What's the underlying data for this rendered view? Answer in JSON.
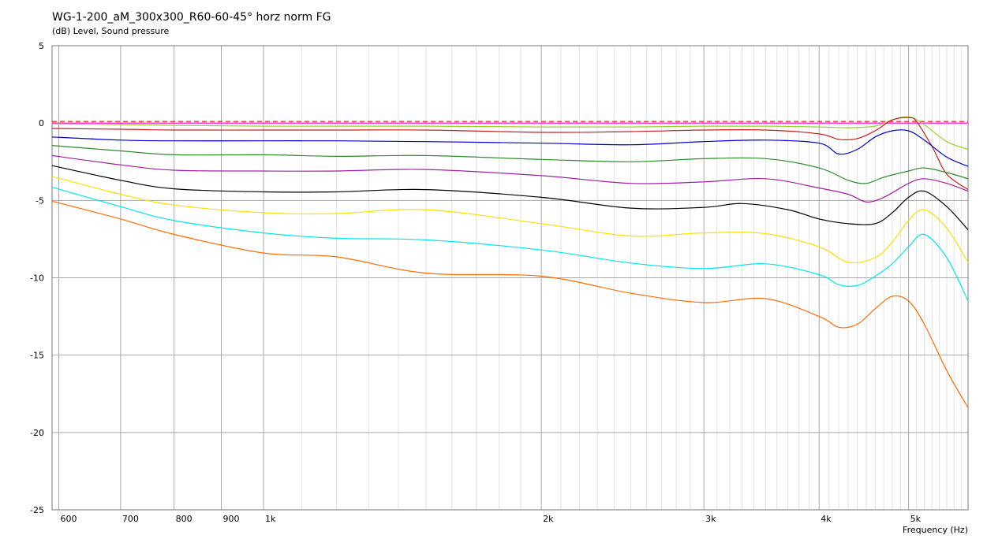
{
  "chart_data": {
    "type": "line",
    "title": "WG-1-200_aM_300x300_R60-60-45° horz norm FG",
    "ylabel": "(dB)  Level, Sound pressure",
    "xlabel": "Frequency  (Hz)",
    "x_scale": "log",
    "xlim": [
      590,
      5800
    ],
    "ylim": [
      -25,
      5
    ],
    "grid": true,
    "y_ticks": [
      5,
      0,
      -5,
      -10,
      -15,
      -20,
      -25
    ],
    "x_ticks": [
      {
        "value": 600,
        "label": "600"
      },
      {
        "value": 700,
        "label": "700"
      },
      {
        "value": 800,
        "label": "800"
      },
      {
        "value": 900,
        "label": "900"
      },
      {
        "value": 1000,
        "label": "1k"
      },
      {
        "value": 2000,
        "label": "2k"
      },
      {
        "value": 3000,
        "label": "3k"
      },
      {
        "value": 4000,
        "label": "4k"
      },
      {
        "value": 5000,
        "label": "5k"
      }
    ],
    "series": [
      {
        "color": "#ff00ff",
        "x": [
          590,
          5800
        ],
        "y": [
          0,
          0
        ]
      },
      {
        "color": "#ff0000",
        "dashed": true,
        "x": [
          590,
          5800
        ],
        "y": [
          0.1,
          0.1
        ]
      },
      {
        "color": "#9acd32",
        "x": [
          590,
          700,
          800,
          1000,
          1200,
          1500,
          2000,
          2500,
          3000,
          3500,
          4000,
          4300,
          4600,
          4800,
          5000,
          5200,
          5500,
          5800
        ],
        "y": [
          -0.05,
          -0.1,
          -0.15,
          -0.2,
          -0.2,
          -0.2,
          -0.25,
          -0.25,
          -0.2,
          -0.2,
          -0.25,
          -0.3,
          -0.2,
          0.2,
          0.4,
          -0.1,
          -1.2,
          -1.7
        ]
      },
      {
        "color": "#c81e1e",
        "x": [
          590,
          700,
          800,
          1000,
          1200,
          1500,
          2000,
          2500,
          3000,
          3500,
          4000,
          4200,
          4400,
          4600,
          4800,
          5000,
          5100,
          5300,
          5500,
          5800
        ],
        "y": [
          -0.35,
          -0.4,
          -0.45,
          -0.45,
          -0.45,
          -0.45,
          -0.6,
          -0.55,
          -0.45,
          -0.45,
          -0.7,
          -1.05,
          -1.0,
          -0.5,
          0.2,
          0.35,
          0.1,
          -1.5,
          -3.3,
          -4.3
        ]
      },
      {
        "color": "#0000cd",
        "x": [
          590,
          700,
          800,
          1000,
          1200,
          1500,
          2000,
          2500,
          3000,
          3500,
          4000,
          4200,
          4400,
          4600,
          4800,
          5000,
          5200,
          5500,
          5800
        ],
        "y": [
          -0.9,
          -1.1,
          -1.15,
          -1.15,
          -1.15,
          -1.2,
          -1.3,
          -1.4,
          -1.2,
          -1.1,
          -1.3,
          -2.0,
          -1.7,
          -0.9,
          -0.5,
          -0.5,
          -1.1,
          -2.2,
          -2.8
        ]
      },
      {
        "color": "#2e8b2e",
        "x": [
          590,
          700,
          800,
          1000,
          1200,
          1500,
          2000,
          2500,
          3000,
          3500,
          4000,
          4300,
          4500,
          4700,
          5000,
          5200,
          5500,
          5800
        ],
        "y": [
          -1.45,
          -1.8,
          -2.05,
          -2.05,
          -2.15,
          -2.1,
          -2.35,
          -2.5,
          -2.3,
          -2.3,
          -2.9,
          -3.7,
          -3.9,
          -3.5,
          -3.1,
          -2.9,
          -3.2,
          -3.6
        ]
      },
      {
        "color": "#a020a0",
        "x": [
          590,
          700,
          800,
          1000,
          1200,
          1500,
          2000,
          2500,
          3000,
          3500,
          4000,
          4300,
          4500,
          4700,
          5000,
          5200,
          5500,
          5800
        ],
        "y": [
          -2.1,
          -2.7,
          -3.05,
          -3.1,
          -3.1,
          -3.0,
          -3.4,
          -3.9,
          -3.8,
          -3.6,
          -4.2,
          -4.6,
          -5.1,
          -4.8,
          -3.9,
          -3.6,
          -3.9,
          -4.4
        ]
      },
      {
        "color": "#000000",
        "x": [
          590,
          700,
          800,
          1000,
          1200,
          1500,
          2000,
          2500,
          3000,
          3300,
          3700,
          4000,
          4300,
          4600,
          4800,
          5000,
          5200,
          5500,
          5800
        ],
        "y": [
          -2.75,
          -3.7,
          -4.25,
          -4.45,
          -4.45,
          -4.3,
          -4.8,
          -5.5,
          -5.45,
          -5.2,
          -5.6,
          -6.2,
          -6.5,
          -6.5,
          -5.8,
          -4.8,
          -4.4,
          -5.4,
          -6.9
        ]
      },
      {
        "color": "#ffe000",
        "x": [
          590,
          700,
          800,
          1000,
          1200,
          1500,
          2000,
          2500,
          3000,
          3500,
          4000,
          4300,
          4600,
          4800,
          5000,
          5200,
          5500,
          5800
        ],
        "y": [
          -3.45,
          -4.6,
          -5.3,
          -5.8,
          -5.85,
          -5.6,
          -6.5,
          -7.3,
          -7.1,
          -7.15,
          -8.0,
          -9.0,
          -8.7,
          -7.7,
          -6.3,
          -5.6,
          -6.8,
          -9.0
        ]
      },
      {
        "color": "#00e5ee",
        "x": [
          590,
          700,
          800,
          1000,
          1200,
          1500,
          2000,
          2500,
          3000,
          3500,
          4000,
          4200,
          4400,
          4600,
          4800,
          5000,
          5200,
          5500,
          5800
        ],
        "y": [
          -4.15,
          -5.4,
          -6.3,
          -7.1,
          -7.45,
          -7.55,
          -8.2,
          -9.05,
          -9.4,
          -9.1,
          -9.8,
          -10.45,
          -10.5,
          -9.9,
          -9.1,
          -8.0,
          -7.2,
          -8.7,
          -11.5
        ]
      },
      {
        "color": "#ff6a00",
        "x": [
          590,
          700,
          800,
          1000,
          1200,
          1500,
          2000,
          2500,
          3000,
          3500,
          4000,
          4200,
          4400,
          4600,
          4800,
          5000,
          5200,
          5500,
          5800
        ],
        "y": [
          -5.05,
          -6.2,
          -7.2,
          -8.4,
          -8.65,
          -9.7,
          -9.9,
          -11.0,
          -11.6,
          -11.35,
          -12.5,
          -13.2,
          -13.0,
          -12.0,
          -11.2,
          -11.5,
          -13.0,
          -16.0,
          -18.4
        ]
      }
    ]
  }
}
